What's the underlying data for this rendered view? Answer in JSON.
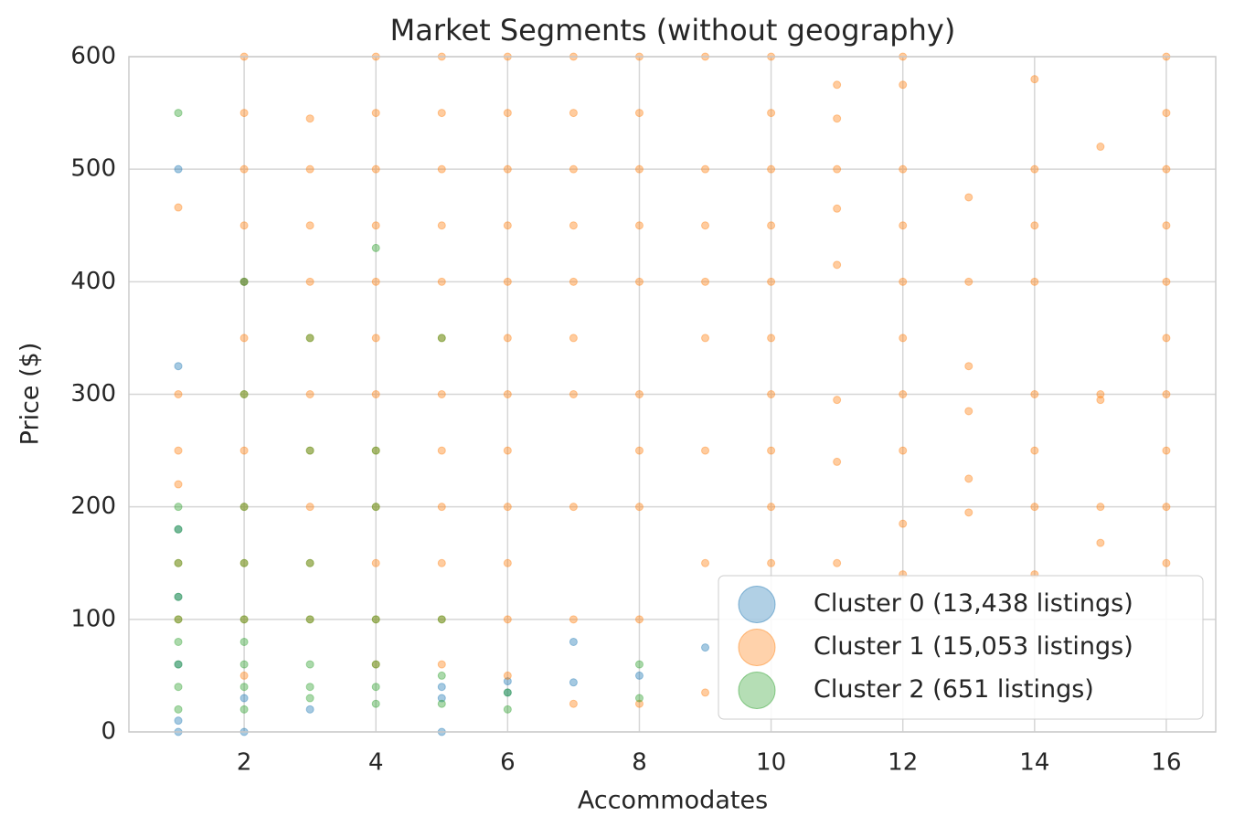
{
  "chart_data": {
    "type": "scatter",
    "title": "Market Segments (without geography)",
    "x_label": "Accommodates",
    "y_label": "Price ($)",
    "xlim": [
      0.25,
      16.75
    ],
    "ylim": [
      0,
      600
    ],
    "xticks": [
      2,
      4,
      6,
      8,
      10,
      12,
      14,
      16
    ],
    "yticks": [
      0,
      100,
      200,
      300,
      400,
      500,
      600
    ],
    "grid": true,
    "legend": "lower right",
    "series": [
      {
        "name": "Cluster 0 (13,438 listings)",
        "color": "#1f77b4",
        "x": [
          1,
          1,
          1,
          1,
          1,
          1,
          2,
          2,
          3,
          5,
          5,
          6,
          6,
          7,
          7,
          8,
          9,
          1,
          2,
          5
        ],
        "values": [
          500,
          325,
          180,
          120,
          60,
          0,
          400,
          0,
          20,
          40,
          30,
          45,
          35,
          80,
          44,
          50,
          75,
          10,
          30,
          0
        ]
      },
      {
        "name": "Cluster 1 (15,053 listings)",
        "color": "#ff7f0e",
        "x": [
          1,
          1,
          1,
          1,
          1,
          1,
          2,
          2,
          2,
          2,
          2,
          2,
          2,
          2,
          2,
          2,
          2,
          2,
          3,
          3,
          3,
          3,
          3,
          3,
          3,
          3,
          3,
          3,
          4,
          4,
          4,
          4,
          4,
          4,
          4,
          4,
          4,
          4,
          4,
          4,
          5,
          5,
          5,
          5,
          5,
          5,
          5,
          5,
          5,
          5,
          5,
          5,
          6,
          6,
          6,
          6,
          6,
          6,
          6,
          6,
          6,
          6,
          6,
          6,
          7,
          7,
          7,
          7,
          7,
          7,
          7,
          7,
          7,
          7,
          8,
          8,
          8,
          8,
          8,
          8,
          8,
          8,
          8,
          8,
          9,
          9,
          9,
          9,
          9,
          9,
          9,
          9,
          10,
          10,
          10,
          10,
          10,
          10,
          10,
          10,
          10,
          10,
          11,
          11,
          11,
          11,
          11,
          11,
          11,
          11,
          12,
          12,
          12,
          12,
          12,
          12,
          12,
          12,
          12,
          12,
          13,
          13,
          13,
          13,
          13,
          13,
          14,
          14,
          14,
          14,
          14,
          14,
          14,
          14,
          15,
          15,
          15,
          15,
          15,
          16,
          16,
          16,
          16,
          16,
          16,
          16,
          16,
          16,
          16
        ],
        "values": [
          466,
          300,
          250,
          220,
          150,
          100,
          600,
          550,
          500,
          450,
          400,
          350,
          300,
          250,
          200,
          150,
          100,
          50,
          545,
          500,
          450,
          400,
          350,
          300,
          250,
          200,
          150,
          100,
          600,
          550,
          500,
          450,
          400,
          350,
          300,
          250,
          200,
          150,
          100,
          60,
          600,
          550,
          500,
          450,
          400,
          350,
          300,
          250,
          200,
          150,
          100,
          60,
          600,
          550,
          500,
          450,
          400,
          350,
          300,
          250,
          200,
          150,
          100,
          50,
          600,
          550,
          500,
          450,
          400,
          350,
          300,
          200,
          100,
          25,
          600,
          550,
          500,
          450,
          400,
          300,
          250,
          200,
          100,
          25,
          600,
          500,
          450,
          400,
          350,
          250,
          150,
          35,
          600,
          550,
          500,
          450,
          400,
          350,
          300,
          250,
          200,
          150,
          575,
          545,
          500,
          465,
          415,
          295,
          240,
          150,
          600,
          575,
          500,
          450,
          400,
          350,
          300,
          250,
          185,
          140,
          475,
          400,
          325,
          285,
          225,
          195,
          580,
          500,
          450,
          400,
          300,
          250,
          200,
          140,
          520,
          300,
          295,
          200,
          168,
          600,
          550,
          500,
          450,
          400,
          350,
          300,
          250,
          200,
          150
        ]
      },
      {
        "name": "Cluster 2 (651 listings)",
        "color": "#2ca02c",
        "x": [
          1,
          1,
          1,
          1,
          1,
          1,
          1,
          1,
          1,
          1,
          2,
          2,
          2,
          2,
          2,
          2,
          2,
          2,
          2,
          3,
          3,
          3,
          3,
          3,
          3,
          3,
          4,
          4,
          4,
          4,
          4,
          4,
          4,
          5,
          5,
          5,
          5,
          6,
          6,
          8,
          8
        ],
        "values": [
          550,
          200,
          180,
          150,
          120,
          100,
          80,
          60,
          40,
          20,
          400,
          300,
          200,
          150,
          100,
          80,
          60,
          40,
          20,
          350,
          250,
          150,
          100,
          60,
          40,
          30,
          430,
          250,
          200,
          100,
          60,
          40,
          25,
          350,
          100,
          50,
          25,
          35,
          20,
          60,
          30
        ]
      }
    ]
  }
}
